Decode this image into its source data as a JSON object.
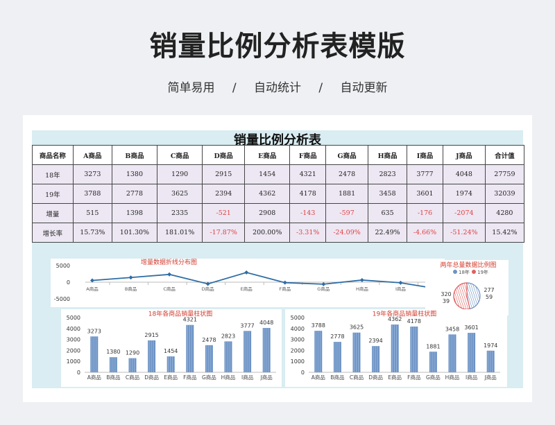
{
  "page": {
    "title": "销量比例分析表模版",
    "tags": [
      "简单易用",
      "自动统计",
      "自动更新"
    ],
    "separator": "/"
  },
  "sheet": {
    "title": "销量比例分析表",
    "headers": [
      "商品名称",
      "A商品",
      "B商品",
      "C商品",
      "D商品",
      "E商品",
      "F商品",
      "G商品",
      "H商品",
      "I商品",
      "J商品",
      "合计值"
    ],
    "rows": [
      {
        "label": "18年",
        "values": [
          "3273",
          "1380",
          "1290",
          "2915",
          "1454",
          "4321",
          "2478",
          "2823",
          "3777",
          "4048",
          "27759"
        ]
      },
      {
        "label": "19年",
        "values": [
          "3788",
          "2778",
          "3625",
          "2394",
          "4362",
          "4178",
          "1881",
          "3458",
          "3601",
          "1974",
          "32039"
        ]
      },
      {
        "label": "增量",
        "values": [
          "515",
          "1398",
          "2335",
          "-521",
          "2908",
          "-143",
          "-597",
          "635",
          "-176",
          "-2074",
          "4280"
        ]
      },
      {
        "label": "增长率",
        "values": [
          "15.73%",
          "101.30%",
          "181.01%",
          "-17.87%",
          "200.00%",
          "-3.31%",
          "-24.09%",
          "22.49%",
          "-4.66%",
          "-51.24%",
          "15.42%"
        ]
      }
    ]
  },
  "colors": {
    "accent": "#2e6da4",
    "bar": "#6d93c4",
    "negative": "#e04040",
    "pie_red": "#e06060",
    "sheet_bg": "#d9edf2"
  },
  "chart_data": [
    {
      "type": "line",
      "title": "增量数据折线分布图",
      "categories": [
        "A商品",
        "B商品",
        "C商品",
        "D商品",
        "E商品",
        "F商品",
        "G商品",
        "H商品",
        "I商品",
        "J商品"
      ],
      "values": [
        515,
        1398,
        2335,
        -521,
        2908,
        -143,
        -597,
        635,
        -176,
        -2074
      ],
      "yticks": [
        "5000",
        "0",
        "-5000"
      ],
      "ylim": [
        -5000,
        5000
      ]
    },
    {
      "type": "pie",
      "title": "两年总量数据比例图",
      "labels": [
        "18年",
        "19年"
      ],
      "values": [
        27759,
        32039
      ],
      "value_labels": [
        "320\n39",
        "277\n59"
      ]
    },
    {
      "type": "bar",
      "title": "18年各商品销量柱状图",
      "categories": [
        "A商品",
        "B商品",
        "C商品",
        "D商品",
        "E商品",
        "F商品",
        "G商品",
        "H商品",
        "I商品",
        "J商品"
      ],
      "values": [
        3273,
        1380,
        1290,
        2915,
        1454,
        4321,
        2478,
        2823,
        3777,
        4048
      ],
      "yticks": [
        "5000",
        "4000",
        "3000",
        "2000",
        "1000",
        "0"
      ],
      "ylim": [
        0,
        5000
      ]
    },
    {
      "type": "bar",
      "title": "19年各商品销量柱状图",
      "categories": [
        "A商品",
        "B商品",
        "C商品",
        "D商品",
        "E商品",
        "F商品",
        "G商品",
        "H商品",
        "I商品",
        "J商品"
      ],
      "values": [
        3788,
        2778,
        3625,
        2394,
        4362,
        4178,
        1881,
        3458,
        3601,
        1974
      ],
      "yticks": [
        "5000",
        "4000",
        "3000",
        "2000",
        "1000",
        "0"
      ],
      "ylim": [
        0,
        5000
      ]
    }
  ]
}
